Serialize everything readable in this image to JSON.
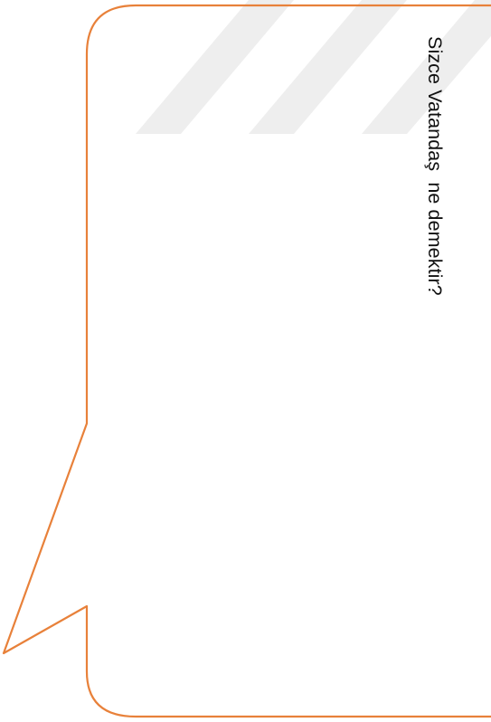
{
  "question": "Sizce Vatandaş  ne demektir?",
  "colors": {
    "bubble_stroke": "#e8813a",
    "watermark": "#eeeeee",
    "text": "#111111",
    "background": "#ffffff"
  }
}
